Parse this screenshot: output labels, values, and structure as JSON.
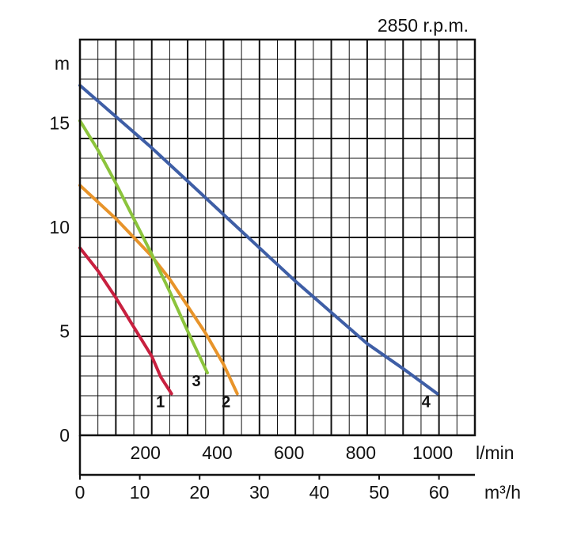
{
  "chart_data": {
    "type": "line",
    "title": "2850 r.p.m.",
    "ylabel": "m",
    "ylim": [
      0,
      19
    ],
    "yticks": [
      0,
      5,
      10,
      15
    ],
    "xlabel_primary": "l/min",
    "xlim_primary": [
      0,
      1100
    ],
    "xticks_primary": [
      200,
      400,
      600,
      800,
      1000
    ],
    "xlabel_secondary": "m³/h",
    "xlim_secondary": [
      0,
      66
    ],
    "xticks_secondary": [
      0,
      10,
      20,
      30,
      40,
      50,
      60
    ],
    "grid": true,
    "series": [
      {
        "name": "1",
        "color": "#c8203f",
        "x": [
          0,
          50,
          100,
          150,
          200,
          225,
          255
        ],
        "y": [
          9.0,
          7.9,
          6.6,
          5.2,
          3.8,
          2.8,
          2.0
        ]
      },
      {
        "name": "2",
        "color": "#e8942a",
        "x": [
          0,
          100,
          200,
          250,
          300,
          350,
          400,
          438
        ],
        "y": [
          12.0,
          10.4,
          8.6,
          7.5,
          6.2,
          4.9,
          3.4,
          2.0
        ]
      },
      {
        "name": "3",
        "color": "#8cc43c",
        "x": [
          0,
          50,
          100,
          150,
          200,
          250,
          300,
          355
        ],
        "y": [
          15.1,
          13.7,
          12.1,
          10.4,
          8.7,
          6.9,
          5.0,
          3.0
        ]
      },
      {
        "name": "4",
        "color": "#3e5ea6",
        "x": [
          0,
          100,
          200,
          300,
          400,
          500,
          600,
          700,
          800,
          900,
          995
        ],
        "y": [
          16.8,
          15.3,
          13.8,
          12.2,
          10.6,
          9.0,
          7.4,
          5.9,
          4.4,
          3.2,
          2.0
        ]
      }
    ]
  }
}
